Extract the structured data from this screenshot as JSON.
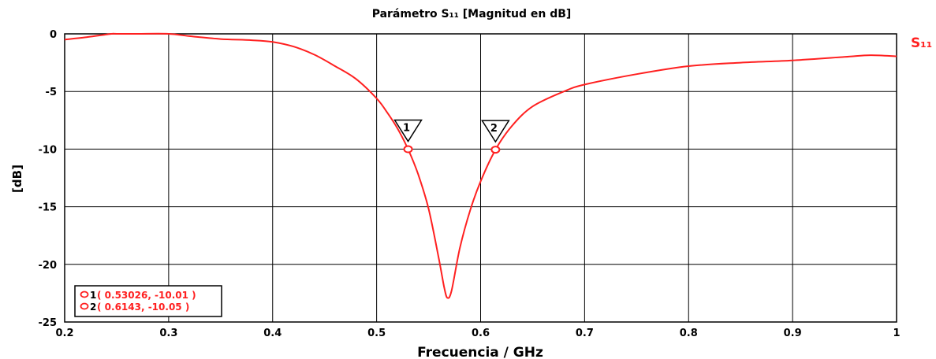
{
  "chart_data": {
    "type": "line",
    "title": "Parámetro S₁₁ [Magnitud en dB]",
    "xlabel": "Frecuencia / GHz",
    "ylabel": "[dB]",
    "xlim": [
      0.2,
      1.0
    ],
    "ylim": [
      -25,
      0
    ],
    "x_ticks": [
      "0.2",
      "0.3",
      "0.4",
      "0.5",
      "0.6",
      "0.7",
      "0.8",
      "0.9",
      "1"
    ],
    "y_ticks": [
      "0",
      "-5",
      "-10",
      "-15",
      "-20",
      "-25"
    ],
    "grid": true,
    "colors": {
      "series": "#ff2020",
      "grid": "#000000"
    },
    "series": [
      {
        "name": "S₁₁",
        "x": [
          0.2,
          0.22,
          0.245,
          0.25,
          0.27,
          0.3,
          0.32,
          0.35,
          0.38,
          0.4,
          0.42,
          0.44,
          0.46,
          0.48,
          0.5,
          0.51,
          0.52,
          0.53026,
          0.54,
          0.55,
          0.56,
          0.565,
          0.568,
          0.572,
          0.58,
          0.59,
          0.6,
          0.6143,
          0.63,
          0.65,
          0.68,
          0.7,
          0.75,
          0.8,
          0.85,
          0.9,
          0.95,
          0.975,
          1.0
        ],
        "y": [
          -0.5,
          -0.3,
          0.0,
          0.1,
          0.1,
          0.0,
          -0.2,
          -0.45,
          -0.55,
          -0.7,
          -1.1,
          -1.8,
          -2.8,
          -3.9,
          -5.6,
          -6.8,
          -8.2,
          -10.01,
          -12.2,
          -15.2,
          -19.6,
          -22.0,
          -22.9,
          -22.3,
          -18.6,
          -15.3,
          -12.8,
          -10.05,
          -8.0,
          -6.3,
          -5.0,
          -4.4,
          -3.5,
          -2.8,
          -2.5,
          -2.3,
          -2.0,
          -1.85,
          -1.95
        ]
      }
    ],
    "markers": [
      {
        "id": "1",
        "x": 0.53026,
        "y": -10.01,
        "label": "( 0.53026, -10.01 )"
      },
      {
        "id": "2",
        "x": 0.6143,
        "y": -10.05,
        "label": "( 0.6143, -10.05 )"
      }
    ],
    "legend_position": "bottom-left"
  }
}
